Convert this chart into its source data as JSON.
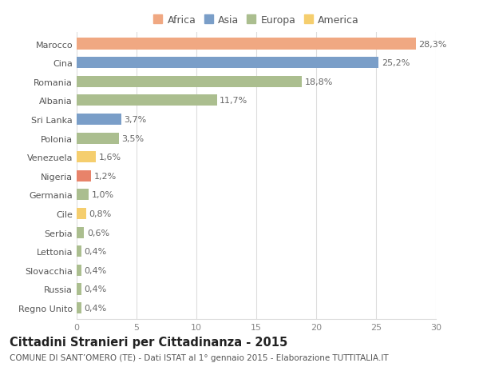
{
  "categories": [
    "Marocco",
    "Cina",
    "Romania",
    "Albania",
    "Sri Lanka",
    "Polonia",
    "Venezuela",
    "Nigeria",
    "Germania",
    "Cile",
    "Serbia",
    "Lettonia",
    "Slovacchia",
    "Russia",
    "Regno Unito"
  ],
  "values": [
    28.3,
    25.2,
    18.8,
    11.7,
    3.7,
    3.5,
    1.6,
    1.2,
    1.0,
    0.8,
    0.6,
    0.4,
    0.4,
    0.4,
    0.4
  ],
  "labels": [
    "28,3%",
    "25,2%",
    "18,8%",
    "11,7%",
    "3,7%",
    "3,5%",
    "1,6%",
    "1,2%",
    "1,0%",
    "0,8%",
    "0,6%",
    "0,4%",
    "0,4%",
    "0,4%",
    "0,4%"
  ],
  "colors": [
    "#F0A882",
    "#7A9EC8",
    "#ABBE8F",
    "#ABBE8F",
    "#7A9EC8",
    "#ABBE8F",
    "#F5CE6E",
    "#E8836A",
    "#ABBE8F",
    "#F5CE6E",
    "#ABBE8F",
    "#ABBE8F",
    "#ABBE8F",
    "#ABBE8F",
    "#ABBE8F"
  ],
  "continent_colors": {
    "Africa": "#F0A882",
    "Asia": "#7A9EC8",
    "Europa": "#ABBE8F",
    "America": "#F5CE6E"
  },
  "legend_order": [
    "Africa",
    "Asia",
    "Europa",
    "America"
  ],
  "title": "Cittadini Stranieri per Cittadinanza - 2015",
  "subtitle": "COMUNE DI SANT’OMERO (TE) - Dati ISTAT al 1° gennaio 2015 - Elaborazione TUTTITALIA.IT",
  "xlim": [
    0,
    30
  ],
  "xticks": [
    0,
    5,
    10,
    15,
    20,
    25,
    30
  ],
  "background_color": "#ffffff",
  "grid_color": "#dddddd",
  "title_fontsize": 10.5,
  "subtitle_fontsize": 7.5,
  "label_fontsize": 8,
  "tick_fontsize": 8,
  "bar_height": 0.6
}
